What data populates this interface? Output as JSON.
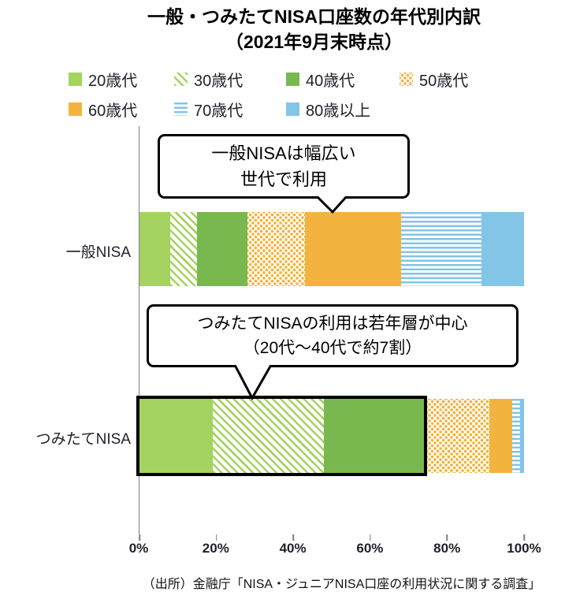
{
  "chart_data": {
    "type": "bar",
    "orientation": "horizontal",
    "stacked": true,
    "title": "一般・つみたてNISA口座数の年代別内訳",
    "subtitle": "（2021年9月末時点）",
    "categories": [
      "一般NISA",
      "つみたてNISA"
    ],
    "series": [
      {
        "name": "20歳代",
        "pattern": "solid",
        "color": "#a5d35f",
        "values": [
          8,
          19
        ]
      },
      {
        "name": "30歳代",
        "pattern": "hatch",
        "color": "#a5d35f",
        "values": [
          7,
          29
        ]
      },
      {
        "name": "40歳代",
        "pattern": "solid",
        "color": "#79b84e",
        "values": [
          13,
          26
        ]
      },
      {
        "name": "50歳代",
        "pattern": "dots",
        "color": "#f2b43e",
        "values": [
          15,
          17
        ]
      },
      {
        "name": "60歳代",
        "pattern": "solid",
        "color": "#f2b43e",
        "values": [
          25,
          6
        ]
      },
      {
        "name": "70歳代",
        "pattern": "hstripe",
        "color": "#82c5e6",
        "values": [
          21,
          2
        ]
      },
      {
        "name": "80歳以上",
        "pattern": "solid",
        "color": "#82c5e6",
        "values": [
          11,
          1
        ]
      }
    ],
    "x_ticks": [
      "0%",
      "20%",
      "40%",
      "60%",
      "80%",
      "100%"
    ],
    "xlim": [
      0,
      100
    ],
    "grid": false,
    "legend_position": "top",
    "annotations": [
      {
        "line1": "一般NISAは幅広い",
        "line2": "世代で利用",
        "target": "一般NISA"
      },
      {
        "line1": "つみたてNISAの利用は若年層が中心",
        "line2": "（20代～40代で約7割）",
        "target": "つみたてNISA"
      }
    ],
    "highlight": {
      "category": "つみたてNISA",
      "range_pct": [
        0,
        74
      ]
    }
  },
  "source": "（出所）金融庁「NISA・ジュニアNISA口座の利用状況に関する調査」"
}
